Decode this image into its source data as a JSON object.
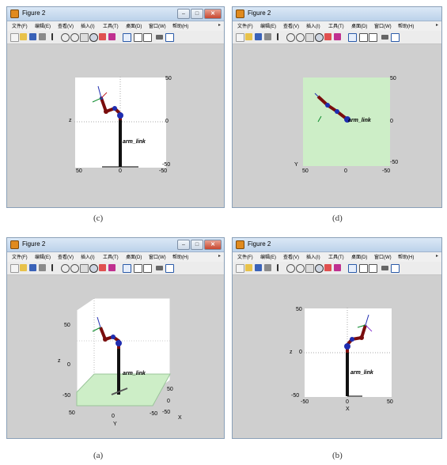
{
  "windows": [
    {
      "id": "c",
      "title": "Figure 2",
      "menu": [
        "文件(F)",
        "编辑(E)",
        "查看(V)",
        "插入(I)",
        "工具(T)",
        "桌面(D)",
        "窗口(W)",
        "帮助(H)"
      ],
      "ticks": {
        "top_right": "50",
        "mid_right": "0",
        "bottom_right": "-50",
        "bottom_left": "50",
        "bottom_center": "0",
        "bottom_right2": "-50",
        "axis_z": "z"
      },
      "link_label": "arm_link",
      "caption": "(c)"
    },
    {
      "id": "d",
      "title": "Figure 2",
      "menu": [
        "文件(F)",
        "编辑(E)",
        "查看(V)",
        "插入(I)",
        "工具(T)",
        "桌面(D)",
        "窗口(W)",
        "帮助(H)"
      ],
      "ticks": {
        "top_right": "50",
        "mid_right": "0",
        "bottom_right": "-50",
        "bottom_left": "50",
        "bottom_center": "0",
        "bottom_right2": "-50",
        "axis_y": "Y"
      },
      "link_label": "arm_link",
      "caption": "(d)"
    },
    {
      "id": "a",
      "title": "Figure 2",
      "menu": [
        "文件(F)",
        "编辑(E)",
        "查看(V)",
        "插入(I)",
        "工具(T)",
        "桌面(D)",
        "窗口(W)",
        "帮助(H)"
      ],
      "ticks": {
        "z50": "50",
        "z0": "0",
        "zm50": "-50",
        "axis_z": "z",
        "x50": "50",
        "x0": "0",
        "xm50": "-50",
        "axis_x": "X",
        "y50": "50",
        "y0": "0",
        "ym50": "-50",
        "axis_y": "Y"
      },
      "link_label": "arm_link",
      "caption": "(a)"
    },
    {
      "id": "b",
      "title": "Figure 2",
      "menu": [
        "文件(F)",
        "编辑(E)",
        "查看(V)",
        "插入(I)",
        "工具(T)",
        "桌面(D)",
        "窗口(W)",
        "帮助(H)"
      ],
      "ticks": {
        "z50": "50",
        "z0": "0",
        "zm50": "-50",
        "bottom_left": "-50",
        "bottom_center": "0",
        "bottom_right": "50",
        "axis_x": "X",
        "axis_z": "z"
      },
      "link_label": "arm_link",
      "caption": "(b)"
    }
  ],
  "colors": {
    "floor_green": "#cdeec7",
    "arm_red": "#7a0d0d",
    "joint_blue": "#1f2db0",
    "base_black": "#111111"
  }
}
